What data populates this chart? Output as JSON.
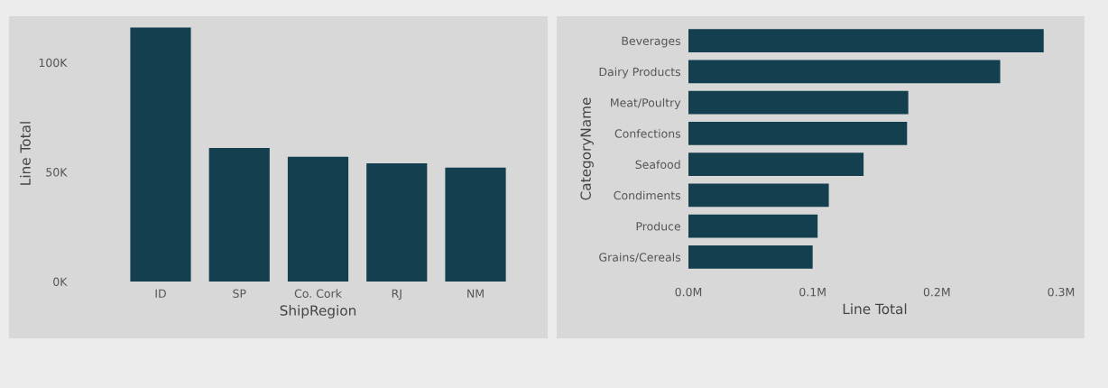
{
  "chart_data": [
    {
      "type": "bar",
      "xlabel": "ShipRegion",
      "ylabel": "Line Total",
      "categories": [
        "ID",
        "SP",
        "Co. Cork",
        "RJ",
        "NM"
      ],
      "series": [
        {
          "color": "#133f4e",
          "values": [
            116,
            61,
            57,
            54,
            52
          ]
        }
      ],
      "ylim": [
        0,
        117
      ],
      "yticks": [
        {
          "value": 0,
          "label": "0K"
        },
        {
          "value": 50,
          "label": "50K"
        },
        {
          "value": 100,
          "label": "100K"
        }
      ],
      "grid": false
    },
    {
      "type": "bar",
      "orientation": "horizontal",
      "xlabel": "Line Total",
      "ylabel": "CategoryName",
      "categories": [
        "Beverages",
        "Dairy Products",
        "Meat/Poultry",
        "Confections",
        "Seafood",
        "Condiments",
        "Produce",
        "Grains/Cereals"
      ],
      "series": [
        {
          "color": "#133f4e",
          "values": [
            0.286,
            0.251,
            0.177,
            0.176,
            0.141,
            0.113,
            0.104,
            0.1
          ]
        }
      ],
      "xlim": [
        0,
        0.3
      ],
      "xticks": [
        {
          "value": 0,
          "label": "0.0M"
        },
        {
          "value": 0.1,
          "label": "0.1M"
        },
        {
          "value": 0.2,
          "label": "0.2M"
        },
        {
          "value": 0.3,
          "label": "0.3M"
        }
      ],
      "grid": false
    }
  ]
}
